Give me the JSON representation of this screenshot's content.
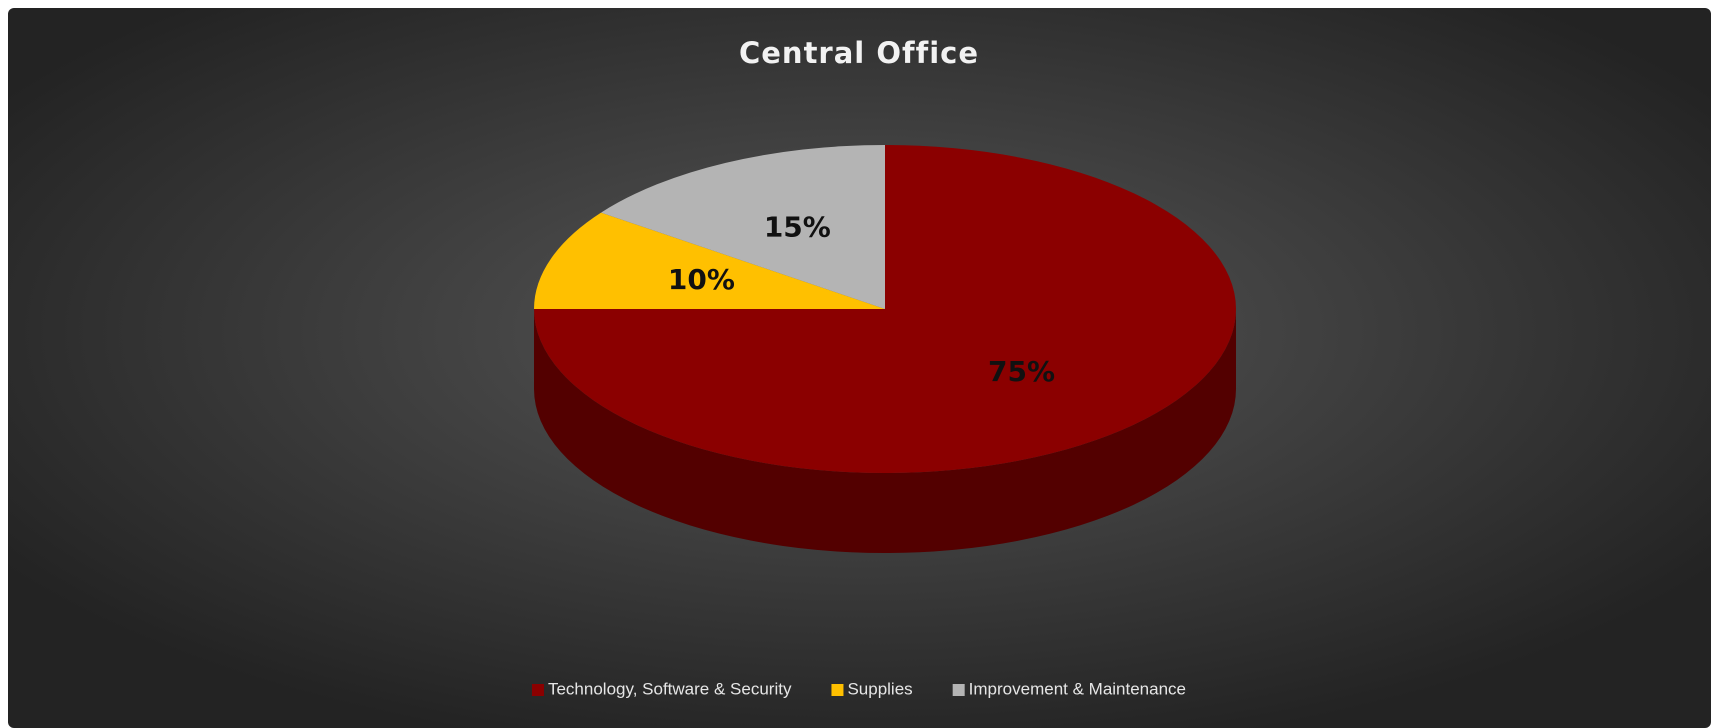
{
  "chart_data": {
    "type": "pie",
    "title": "Central Office",
    "categories": [
      "Technology, Software & Security",
      "Supplies",
      "Improvement & Maintenance"
    ],
    "values": [
      75,
      10,
      15
    ],
    "value_labels": [
      "75%",
      "10%",
      "15%"
    ],
    "colors": [
      "#8b0000",
      "#ffc000",
      "#b4b4b4"
    ],
    "legend": "bottom"
  }
}
